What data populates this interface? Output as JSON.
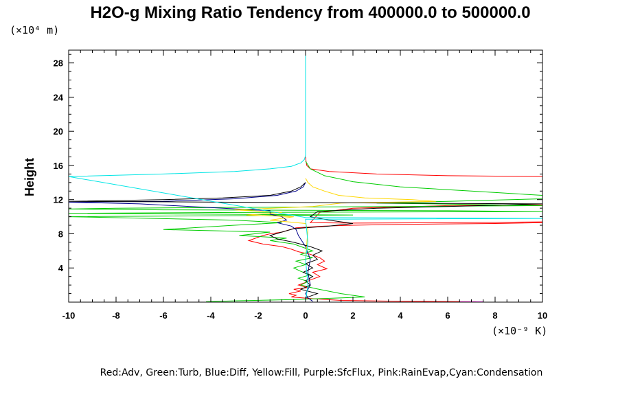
{
  "chart_data": {
    "type": "line",
    "title": "H2O-g Mixing Ratio Tendency from 400000.0 to 500000.0",
    "ylabel": "Height",
    "y_unit": "(×10⁴ m)",
    "x_unit": "(×10⁻⁹ K)",
    "caption": "Red:Adv, Green:Turb, Blue:Diff, Yellow:Fill, Purple:SfcFlux, Pink:RainEvap,Cyan:Condensation",
    "xlim": [
      -10,
      10
    ],
    "ylim": [
      0,
      29.5
    ],
    "x_ticks": [
      "-10",
      "-8",
      "-6",
      "-4",
      "-2",
      "0",
      "2",
      "4",
      "6",
      "8",
      "10"
    ],
    "y_ticks": [
      "4",
      "8",
      "12",
      "16",
      "20",
      "24",
      "28"
    ],
    "grid": false,
    "series": [
      {
        "name": "Red:Adv",
        "color": "#ff0000",
        "x": [
          0,
          0.02,
          0.05,
          0.2,
          1,
          3,
          6,
          10,
          10,
          6,
          2,
          0.6,
          0.3,
          0.2,
          2,
          6,
          10,
          10,
          8,
          4,
          2,
          0.8,
          -0.4,
          -1,
          -1.5,
          -1.8,
          -2,
          -2.4,
          -1.8,
          -1,
          -0.6,
          -0.3,
          0.2,
          0.6,
          0.8,
          0.5,
          0.9,
          0.3,
          0.6,
          0.2,
          0,
          -0.3,
          0.1,
          -0.5,
          -0.2,
          -0.7,
          -0.4,
          -0.6,
          0.3,
          1.5,
          4,
          7.2
        ],
        "y": [
          17.0,
          16.5,
          16.0,
          15.6,
          15.3,
          15.0,
          14.8,
          14.7,
          11.4,
          11.3,
          11.0,
          10.5,
          9.6,
          9.3,
          9.25,
          9.3,
          9.4,
          9.3,
          9.2,
          9.1,
          9.0,
          8.9,
          8.7,
          8.2,
          8.0,
          7.8,
          7.6,
          7.2,
          6.8,
          6.5,
          6.2,
          5.9,
          5.6,
          5.2,
          4.8,
          4.4,
          3.9,
          3.5,
          3.0,
          2.6,
          2.3,
          2.0,
          1.7,
          1.5,
          1.3,
          1.0,
          0.8,
          0.6,
          0.4,
          0.2,
          0.1,
          0.05
        ]
      },
      {
        "name": "Green:Turb",
        "color": "#00cc00",
        "x": [
          0,
          0.2,
          0.8,
          2,
          4,
          7,
          10,
          10,
          6,
          3,
          8,
          10,
          4,
          -2,
          -8,
          -10,
          -6,
          6,
          10,
          -3,
          -10,
          -4,
          2,
          -10,
          -3,
          -1,
          -3,
          -6,
          -1.5,
          -2.8,
          -0.8,
          -1.5,
          -0.5,
          -0.1,
          0.3,
          -0.2,
          0.3,
          -0.4,
          0,
          -0.5,
          -0.2,
          0.2,
          -0.3,
          0.1,
          -0.2,
          0.4,
          1.5,
          2.5,
          -0.5,
          -3,
          -4.2
        ],
        "y": [
          16.5,
          15.6,
          14.8,
          14.1,
          13.5,
          13.0,
          12.5,
          12.1,
          11.8,
          11.6,
          11.4,
          11.3,
          11.2,
          11.1,
          11.0,
          10.9,
          10.8,
          10.7,
          10.6,
          10.5,
          10.4,
          10.3,
          10.2,
          10.0,
          9.6,
          9.3,
          9.0,
          8.5,
          8.2,
          7.8,
          7.5,
          7.2,
          6.8,
          6.4,
          6.0,
          5.6,
          5.2,
          4.8,
          4.4,
          4.0,
          3.6,
          3.2,
          2.8,
          2.4,
          2.0,
          1.6,
          1.0,
          0.6,
          0.3,
          0.15,
          0.05
        ]
      },
      {
        "name": "Blue:Diff",
        "color": "#00008b",
        "x": [
          0,
          -0.1,
          -0.4,
          -1.2,
          -3,
          -6,
          -10,
          -7,
          -1.5,
          -1.5,
          -1,
          -0.8,
          -1.2,
          -0.6,
          -0.4,
          -0.3,
          0,
          0.2,
          0.1,
          0.2,
          0,
          0.1,
          0.3
        ],
        "y": [
          14.0,
          13.5,
          13.0,
          12.5,
          12.1,
          11.8,
          11.7,
          11.5,
          10.7,
          10.3,
          10.0,
          9.6,
          9.3,
          8.9,
          8.5,
          7.8,
          6.5,
          5.0,
          3.5,
          2.0,
          1.0,
          0.5,
          0.1
        ]
      },
      {
        "name": "Yellow:Fill",
        "color": "#ffd700",
        "x": [
          0,
          0.1,
          0.3,
          0.8,
          1.4,
          2.5,
          4.5,
          5.5,
          1.5,
          0.3,
          -3,
          -1,
          -2.5,
          -0.5,
          -1.5,
          0,
          0.1,
          0
        ],
        "y": [
          14.5,
          14.0,
          13.5,
          13.0,
          12.5,
          12.2,
          12.0,
          11.8,
          11.6,
          11.2,
          10.8,
          10.5,
          10.2,
          10.0,
          9.6,
          9.2,
          8.5,
          5.0
        ]
      },
      {
        "name": "Black",
        "color": "#000000",
        "x": [
          0,
          -0.2,
          -0.6,
          -1.5,
          -3.5,
          -6,
          -10,
          10,
          6,
          3,
          0.5,
          0.2,
          1,
          2,
          1,
          -0.5,
          -1,
          -1.5,
          -1.2,
          -0.5,
          0.2,
          0.7,
          0.3,
          0.5,
          0,
          0.3,
          -0.1,
          0.3,
          0,
          0.2,
          -0.2,
          0.5,
          0
        ],
        "y": [
          14.0,
          13.5,
          13.0,
          12.5,
          12.2,
          12.0,
          11.8,
          11.5,
          11.2,
          11.0,
          10.6,
          10.0,
          9.6,
          9.2,
          8.9,
          8.6,
          8.2,
          7.8,
          7.4,
          7.0,
          6.5,
          6.0,
          5.5,
          5.0,
          4.5,
          4.0,
          3.5,
          3.0,
          2.5,
          2.0,
          1.5,
          1.0,
          0.5
        ]
      },
      {
        "name": "Cyan:Condensation",
        "color": "#00e5e5",
        "x": [
          0,
          0,
          -0.05,
          -0.2,
          -0.6,
          -1.5,
          -3,
          -6,
          -10,
          0,
          10,
          0,
          0.1,
          0,
          0.1,
          0
        ],
        "y": [
          29.5,
          17.2,
          16.7,
          16.3,
          15.9,
          15.6,
          15.3,
          15.0,
          14.7,
          9.9,
          9.8,
          9.7,
          7.0,
          5.0,
          2.0,
          0.1
        ]
      },
      {
        "name": "Pink:RainEvap",
        "color": "#ff40ff",
        "x": [
          6.5,
          7.5
        ],
        "y": [
          0.05,
          0.05
        ]
      }
    ]
  }
}
